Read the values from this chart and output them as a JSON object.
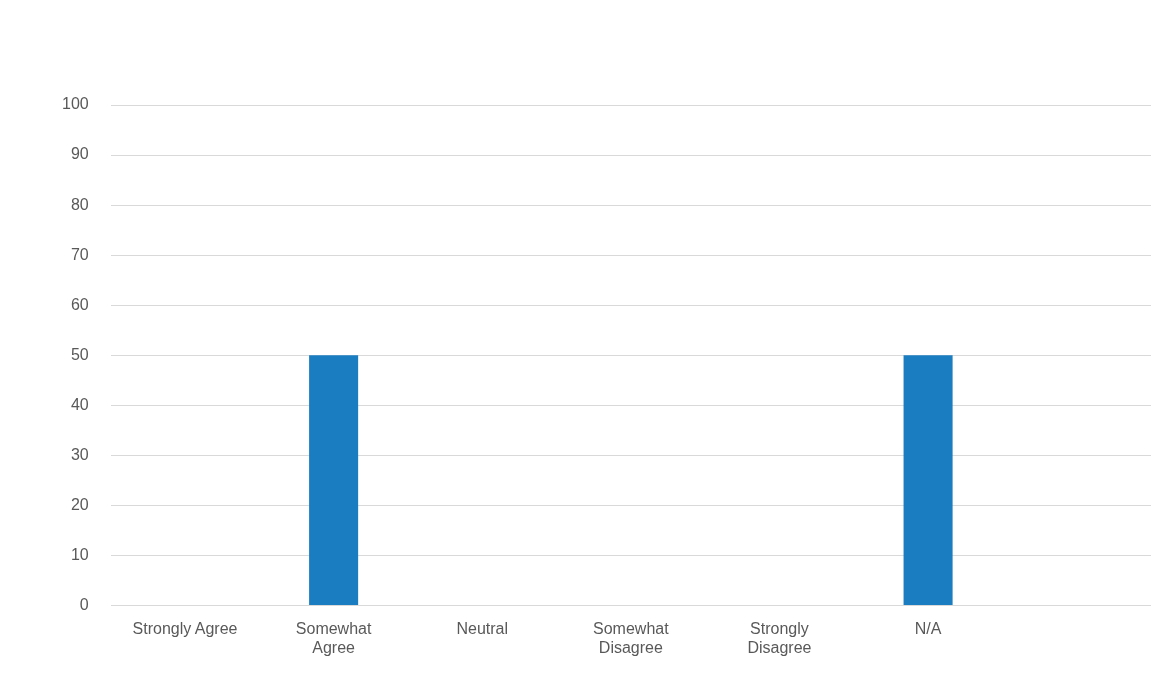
{
  "chart_data": {
    "type": "bar",
    "categories": [
      "Strongly Agree",
      "Somewhat Agree",
      "Neutral",
      "Somewhat Disagree",
      "Strongly Disagree",
      "N/A",
      null
    ],
    "values": [
      0,
      50,
      0,
      0,
      0,
      50,
      0
    ],
    "color": "#1a7dc2",
    "ylim": [
      0,
      100
    ],
    "yticks": [
      0,
      10,
      20,
      30,
      40,
      50,
      60,
      70,
      80,
      90,
      100
    ],
    "grid": "y",
    "legend": false
  }
}
